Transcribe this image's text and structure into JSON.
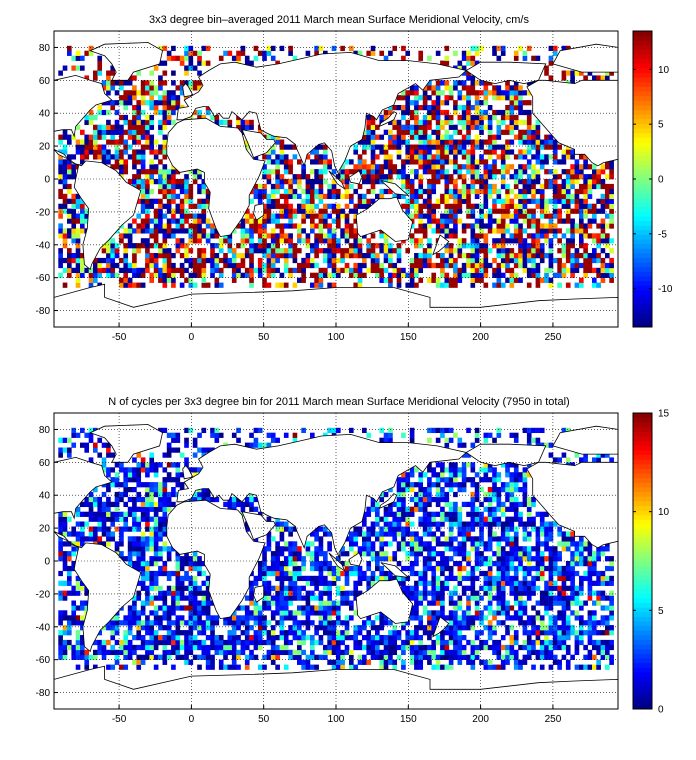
{
  "chart_data": [
    {
      "type": "heatmap",
      "title": "3x3 degree bin–averaged 2011 March mean Surface Meridional Velocity, cm/s",
      "x_ticks": [
        "-50",
        "0",
        "50",
        "100",
        "150",
        "200",
        "250"
      ],
      "x_tick_values": [
        -50,
        0,
        50,
        100,
        150,
        200,
        250
      ],
      "y_ticks": [
        "80",
        "60",
        "40",
        "20",
        "0",
        "-20",
        "-40",
        "-60",
        "-80"
      ],
      "y_tick_values": [
        80,
        60,
        40,
        20,
        0,
        -20,
        -40,
        -60,
        -80
      ],
      "xlim": [
        -95,
        295
      ],
      "ylim": [
        -90,
        90
      ],
      "bin_size_deg": 3,
      "colorbar": {
        "ticks": [
          "10",
          "5",
          "0",
          "-5",
          "-10"
        ],
        "tick_values": [
          10,
          5,
          0,
          -5,
          -10
        ],
        "range": [
          -13.5,
          13.5
        ],
        "colormap": "jet"
      },
      "grid": "dotted",
      "values_note": "bins drawn with randomized values in range"
    },
    {
      "type": "heatmap",
      "title": "N of cycles per 3x3 degree bin for 2011 March mean Surface Meridional Velocity (7950 in total)",
      "x_ticks": [
        "-50",
        "0",
        "50",
        "100",
        "150",
        "200",
        "250"
      ],
      "x_tick_values": [
        -50,
        0,
        50,
        100,
        150,
        200,
        250
      ],
      "y_ticks": [
        "80",
        "60",
        "40",
        "20",
        "0",
        "-20",
        "-40",
        "-60",
        "-80"
      ],
      "y_tick_values": [
        80,
        60,
        40,
        20,
        0,
        -20,
        -40,
        -60,
        -80
      ],
      "xlim": [
        -95,
        295
      ],
      "ylim": [
        -90,
        90
      ],
      "bin_size_deg": 3,
      "colorbar": {
        "ticks": [
          "15",
          "10",
          "5",
          "0"
        ],
        "tick_values": [
          15,
          10,
          5,
          0
        ],
        "range": [
          0,
          15
        ],
        "colormap": "jet"
      },
      "grid": "dotted"
    }
  ]
}
